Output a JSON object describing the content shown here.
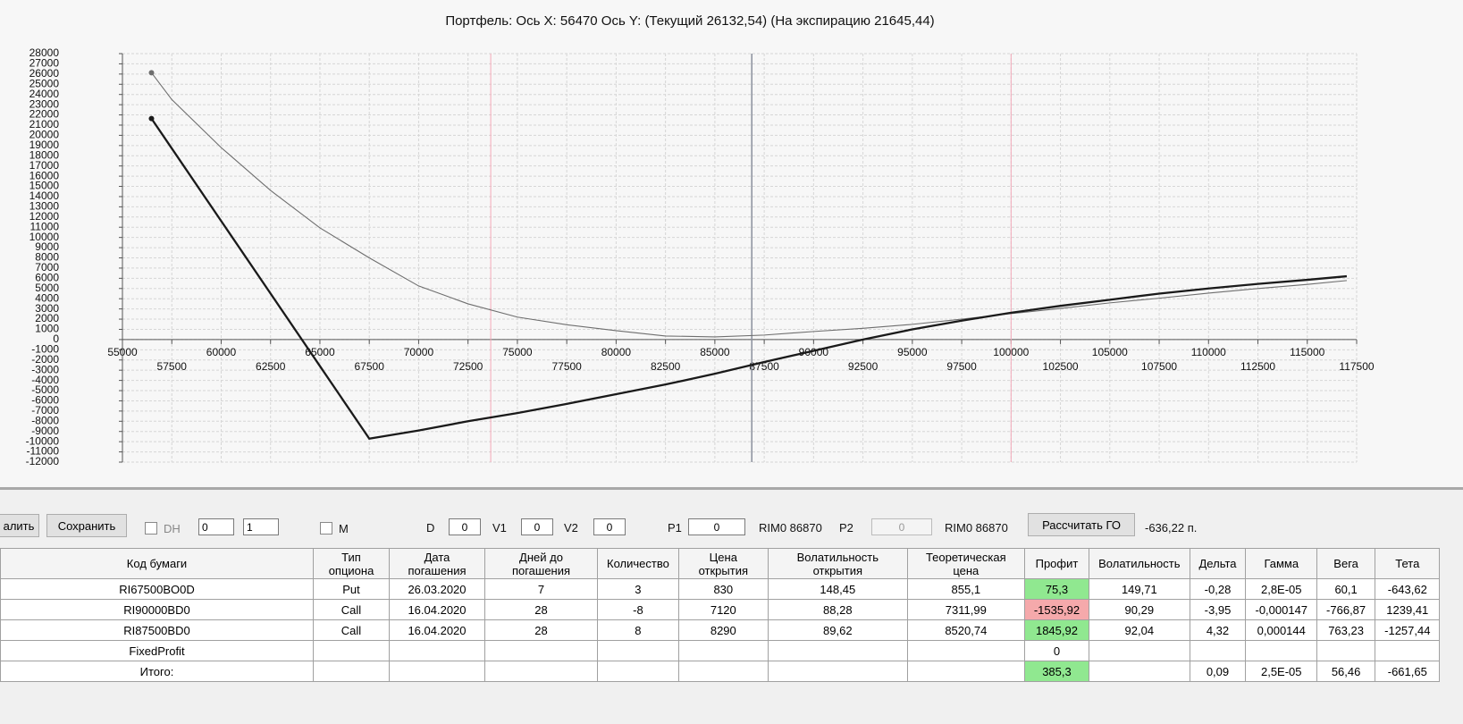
{
  "chart_data": {
    "type": "line",
    "title": "Портфель: Ось X: 56470 Ось Y:  (Текущий 26132,54)  (На экспирацию 21645,44)",
    "x": [
      56470,
      57500,
      60000,
      62500,
      65000,
      67500,
      70000,
      72500,
      75000,
      77500,
      80000,
      82500,
      85000,
      87500,
      90000,
      92500,
      95000,
      97500,
      100000,
      102500,
      105000,
      107500,
      110000,
      112500,
      115000,
      117000
    ],
    "series": [
      {
        "color": "#6e6e6e",
        "values": [
          26132,
          23500,
          18800,
          14600,
          10940,
          8000,
          5250,
          3500,
          2200,
          1450,
          875,
          350,
          260,
          440,
          790,
          1100,
          1490,
          2000,
          2540,
          3050,
          3590,
          4050,
          4550,
          5000,
          5400,
          5780
        ]
      },
      {
        "color": "#1a1a1a",
        "values": [
          21645,
          18718,
          11613,
          4508,
          -2597,
          -9700,
          -8900,
          -8000,
          -7200,
          -6300,
          -5350,
          -4400,
          -3350,
          -2200,
          -1100,
          0,
          1000,
          1850,
          2626,
          3300,
          3900,
          4500,
          5000,
          5450,
          5850,
          6200
        ]
      }
    ],
    "xlim": [
      55000,
      117500
    ],
    "xticks": [
      55000,
      57500,
      60000,
      62500,
      65000,
      67500,
      70000,
      72500,
      75000,
      77500,
      80000,
      82500,
      85000,
      87500,
      90000,
      92500,
      95000,
      97500,
      100000,
      102500,
      105000,
      107500,
      110000,
      112500,
      115000,
      117500
    ],
    "ylim": [
      -12000,
      28000
    ],
    "yticks": [
      -12000,
      -11000,
      -10000,
      -9000,
      -8000,
      -7000,
      -6000,
      -5000,
      -4000,
      -3000,
      -2000,
      -1000,
      0,
      1000,
      2000,
      3000,
      4000,
      5000,
      6000,
      7000,
      8000,
      9000,
      10000,
      11000,
      12000,
      13000,
      14000,
      15000,
      16000,
      17000,
      18000,
      19000,
      20000,
      21000,
      22000,
      23000,
      24000,
      25000,
      26000,
      27000,
      28000
    ],
    "grid": true,
    "vlines": [
      {
        "value": 73650,
        "color": "#f4a9b8"
      },
      {
        "value": 86870,
        "color": "#8a8f9c"
      },
      {
        "value": 100000,
        "color": "#f4a9b8"
      }
    ]
  },
  "toolbar": {
    "buttons": [
      "алить",
      "Сохранить"
    ],
    "checkbox_dh": "DH",
    "spin1": "0",
    "spin2": "1",
    "checkbox_m": "M",
    "fields": [
      {
        "label": "D",
        "value": "0"
      },
      {
        "label": "V1",
        "value": "0"
      },
      {
        "label": "V2",
        "value": "0"
      },
      {
        "label": "P1",
        "value": "0"
      }
    ],
    "p1_ticker": "RIM0 86870",
    "p2_label": "P2",
    "p2_value": "0",
    "p2_ticker": "RIM0 86870",
    "calc_button": "Рассчитать ГО",
    "margin": "-636,22 п."
  },
  "table": {
    "header": [
      "Код бумаги",
      "Тип опциона",
      "Дата погашения",
      "Дней до погашения",
      "Количество",
      "Цена открытия",
      "Волатильность открытия",
      "Теоретическая цена",
      "Профит",
      "Волатильность",
      "Дельта",
      "Гамма",
      "Вега",
      "Тета"
    ],
    "rows": [
      [
        "RI67500BO0D",
        "Put",
        "26.03.2020",
        "7",
        "3",
        "830",
        "148,45",
        "855,1",
        "75,3",
        "149,71",
        "-0,28",
        "2,8E-05",
        "60,1",
        "-643,62"
      ],
      [
        "RI90000BD0",
        "Call",
        "16.04.2020",
        "28",
        "-8",
        "7120",
        "88,28",
        "7311,99",
        "-1535,92",
        "90,29",
        "-3,95",
        "-0,000147",
        "-766,87",
        "1239,41"
      ],
      [
        "RI87500BD0",
        "Call",
        "16.04.2020",
        "28",
        "8",
        "8290",
        "89,62",
        "8520,74",
        "1845,92",
        "92,04",
        "4,32",
        "0,000144",
        "763,23",
        "-1257,44"
      ],
      [
        "FixedProfit",
        null,
        null,
        null,
        null,
        null,
        null,
        null,
        "0",
        null,
        null,
        null,
        null,
        null
      ],
      [
        "Итого:",
        null,
        null,
        null,
        null,
        null,
        null,
        null,
        "385,3",
        null,
        "0,09",
        "2,5E-05",
        "56,46",
        "-661,65"
      ]
    ],
    "profit_colors": [
      "#90e890",
      "#f5a9ab",
      "#90e890",
      null,
      "#90e890"
    ]
  }
}
